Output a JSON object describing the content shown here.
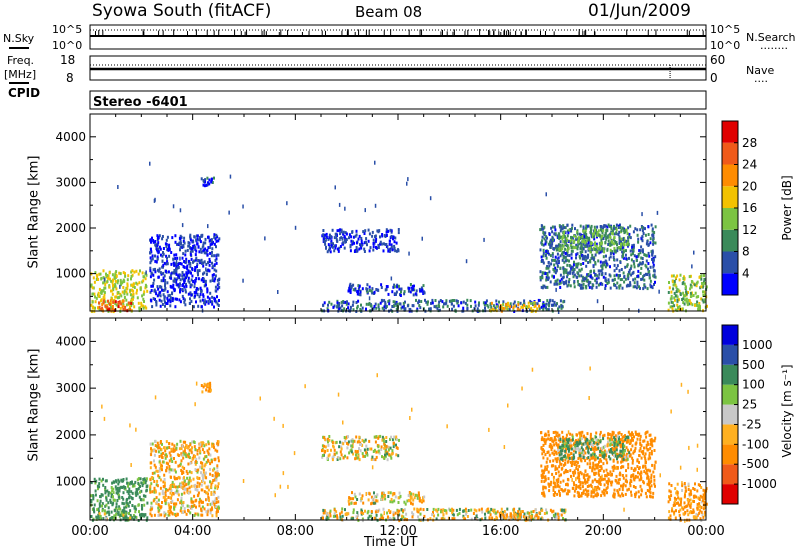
{
  "header": {
    "station": "Syowa South (fitACF)",
    "beam": "Beam 08",
    "date": "01/Jun/2009"
  },
  "noise_panel": {
    "left_label": "N.Sky",
    "right_label": "N.Search",
    "tick_top": "10^5",
    "tick_bottom": "10^0",
    "right_legend_dots": "........"
  },
  "freq_panel": {
    "left_label_1": "Freq.",
    "left_label_2": "[MHz]",
    "left_tick_top": "18",
    "left_tick_bottom": "8",
    "right_label": "Nave",
    "right_tick_top": "60",
    "right_tick_bottom": "0",
    "right_legend_dots": "...."
  },
  "cpid": {
    "label": "CPID",
    "value": "Stereo -6401"
  },
  "x_axis": {
    "title": "Time UT",
    "ticks": [
      "00:00",
      "04:00",
      "08:00",
      "12:00",
      "16:00",
      "20:00",
      "00:00"
    ]
  },
  "colors": {
    "power_scale": [
      "#0000ff",
      "#2a4fa8",
      "#3a8a5a",
      "#7cc442",
      "#f2c200",
      "#ff8c00",
      "#f05a1a",
      "#e00000"
    ],
    "velocity_scale": [
      "#e00000",
      "#f05a1a",
      "#ff8c00",
      "#ffb020",
      "#c8c8c8",
      "#7cc442",
      "#3a8a5a",
      "#2a4fa8",
      "#0000dd"
    ]
  },
  "chart_data": [
    {
      "type": "heatmap",
      "name": "power",
      "ylabel": "Slant Range [km]",
      "y_ticks": [
        "1000",
        "2000",
        "3000",
        "4000"
      ],
      "ylim": [
        180,
        4500
      ],
      "xlim": [
        "00:00",
        "24:00"
      ],
      "colorbar": {
        "label": "Power [dB]",
        "ticks": [
          "4",
          "8",
          "12",
          "16",
          "20",
          "24",
          "28"
        ],
        "range": [
          0,
          32
        ]
      },
      "regions": [
        {
          "t0": 0.0,
          "t1": 2.2,
          "r0": 200,
          "r1": 1100,
          "value": 16
        },
        {
          "t0": 0.3,
          "t1": 1.6,
          "r0": 200,
          "r1": 450,
          "value": 26
        },
        {
          "t0": 2.3,
          "t1": 5.0,
          "r0": 300,
          "r1": 1900,
          "value": 4
        },
        {
          "t0": 4.3,
          "t1": 4.8,
          "r0": 2950,
          "r1": 3150,
          "value": 6
        },
        {
          "t0": 9.0,
          "t1": 12.0,
          "r0": 1500,
          "r1": 2000,
          "value": 4
        },
        {
          "t0": 10.0,
          "t1": 13.0,
          "r0": 550,
          "r1": 800,
          "value": 5
        },
        {
          "t0": 9.0,
          "t1": 18.5,
          "r0": 200,
          "r1": 450,
          "value": 7
        },
        {
          "t0": 15.5,
          "t1": 17.5,
          "r0": 200,
          "r1": 400,
          "value": 18
        },
        {
          "t0": 17.5,
          "t1": 22.0,
          "r0": 700,
          "r1": 2100,
          "value": 7
        },
        {
          "t0": 18.2,
          "t1": 21.0,
          "r0": 1500,
          "r1": 2000,
          "value": 12
        },
        {
          "t0": 22.5,
          "t1": 24.0,
          "r0": 200,
          "r1": 1000,
          "value": 14
        }
      ]
    },
    {
      "type": "heatmap",
      "name": "velocity",
      "ylabel": "Slant Range [km]",
      "y_ticks": [
        "1000",
        "2000",
        "3000",
        "4000"
      ],
      "ylim": [
        180,
        4500
      ],
      "xlim": [
        "00:00",
        "24:00"
      ],
      "colorbar": {
        "label": "Velocity [m s⁻¹]",
        "ticks": [
          "-1000",
          "-500",
          "-100",
          "-25",
          "25",
          "100",
          "500",
          "1000"
        ]
      },
      "regions": [
        {
          "t0": 0.0,
          "t1": 2.2,
          "r0": 200,
          "r1": 1100,
          "value": 200
        },
        {
          "t0": 0.3,
          "t1": 1.6,
          "r0": 200,
          "r1": 450,
          "value": 100
        },
        {
          "t0": 2.3,
          "t1": 5.0,
          "r0": 300,
          "r1": 1900,
          "value": -80
        },
        {
          "t0": 4.3,
          "t1": 4.8,
          "r0": 2950,
          "r1": 3150,
          "value": -200
        },
        {
          "t0": 9.0,
          "t1": 12.0,
          "r0": 1500,
          "r1": 2000,
          "value": -30
        },
        {
          "t0": 10.0,
          "t1": 13.0,
          "r0": 550,
          "r1": 800,
          "value": -60
        },
        {
          "t0": 9.0,
          "t1": 18.5,
          "r0": 200,
          "r1": 450,
          "value": 0
        },
        {
          "t0": 15.5,
          "t1": 17.5,
          "r0": 200,
          "r1": 400,
          "value": -120
        },
        {
          "t0": 17.5,
          "t1": 22.0,
          "r0": 700,
          "r1": 2100,
          "value": -300
        },
        {
          "t0": 18.2,
          "t1": 21.0,
          "r0": 1500,
          "r1": 2000,
          "value": 150
        },
        {
          "t0": 22.5,
          "t1": 24.0,
          "r0": 200,
          "r1": 1000,
          "value": -150
        }
      ]
    }
  ]
}
